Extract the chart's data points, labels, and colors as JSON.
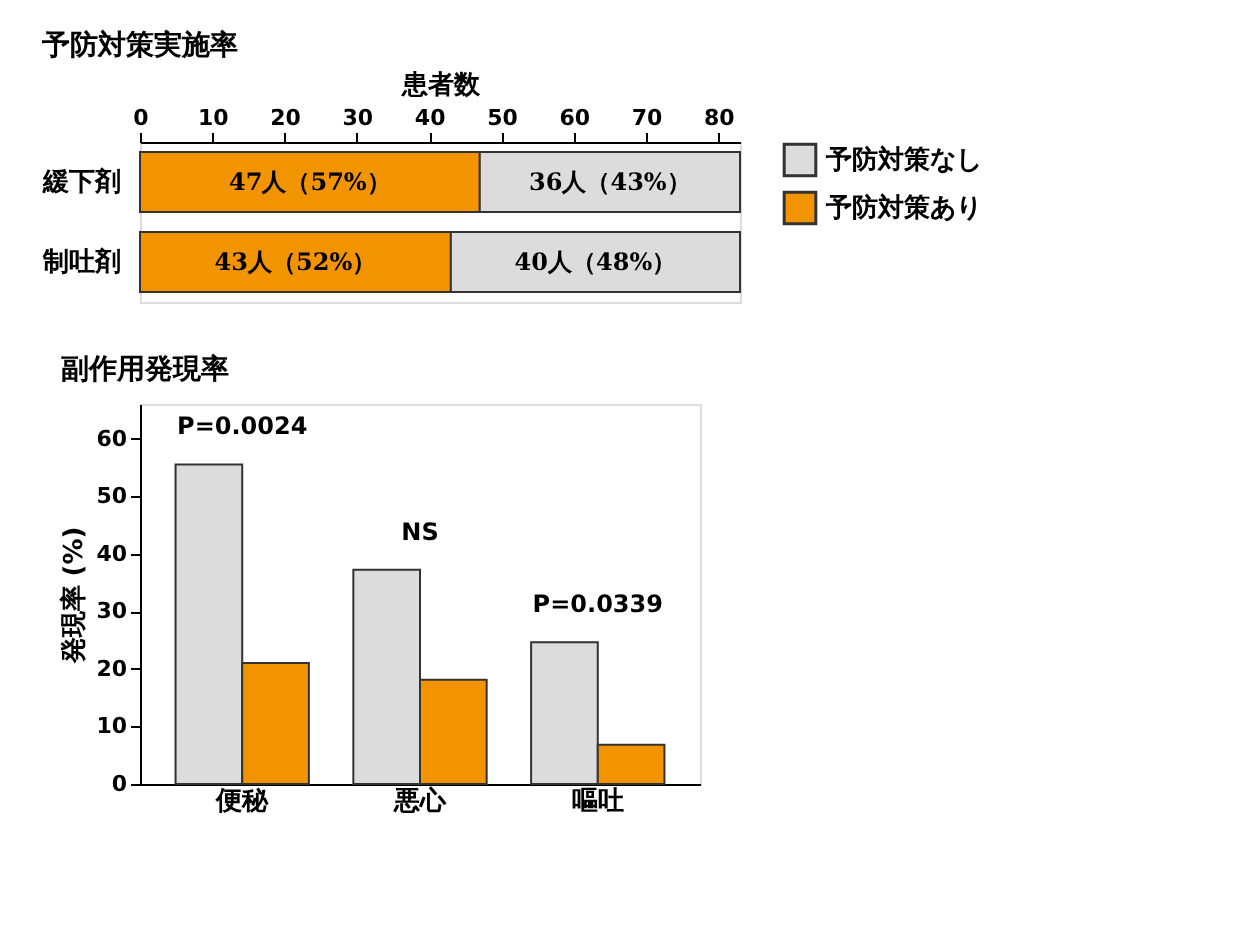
{
  "chart_data": [
    {
      "type": "bar",
      "title": "予防対策実施率",
      "xlabel": "患者数",
      "orientation": "horizontal",
      "stacked": true,
      "categories": [
        "緩下剤",
        "制吐剤"
      ],
      "xlim": [
        0,
        83
      ],
      "xticks": [
        0,
        10,
        20,
        30,
        40,
        50,
        60,
        70,
        80
      ],
      "grid": false,
      "legend": "top right",
      "series": [
        {
          "name": "予防対策あり",
          "color": "#f29400",
          "values": [
            47,
            43
          ],
          "value_labels": [
            "47人（57%）",
            "43人（52%）"
          ]
        },
        {
          "name": "予防対策なし",
          "color": "#dcdcdc",
          "values": [
            36,
            40
          ],
          "value_labels": [
            "36人（43%）",
            "40人（48%）"
          ]
        }
      ]
    },
    {
      "type": "bar",
      "title": "副作用発現率",
      "ylabel": "発現率 (%)",
      "categories": [
        "便秘",
        "悪心",
        "嘔吐"
      ],
      "ylim": [
        0,
        66
      ],
      "yticks": [
        0,
        10,
        20,
        30,
        40,
        50,
        60
      ],
      "grid": false,
      "legend": false,
      "series": [
        {
          "name": "予防対策なし",
          "color": "#dcdcdc",
          "values": [
            55.5,
            37.2,
            24.6
          ]
        },
        {
          "name": "予防対策あり",
          "color": "#f29400",
          "values": [
            21,
            18.1,
            6.8
          ]
        }
      ],
      "annotations": [
        "P=0.0024",
        "NS",
        "P=0.0339"
      ]
    }
  ]
}
